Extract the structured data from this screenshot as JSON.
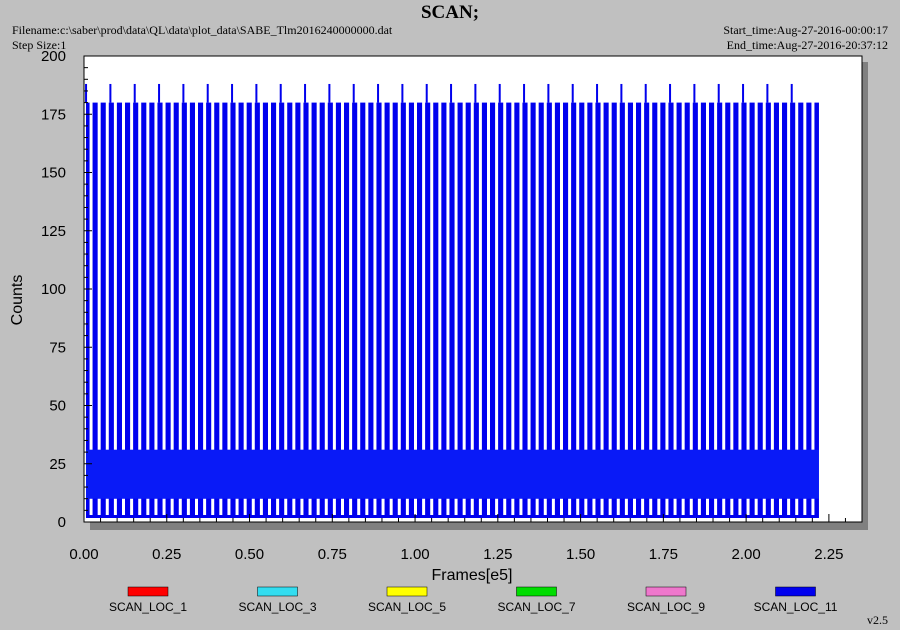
{
  "header": {
    "title": "SCAN;",
    "filename": "Filename:c:\\saber\\prod\\data\\QL\\data\\plot_data\\SABE_Tlm2016240000000.dat",
    "step_size": "Step Size:1",
    "start_time": "Start_time:Aug-27-2016-00:00:17",
    "end_time": "End_time:Aug-27-2016-20:37:12",
    "version": "v2.5"
  },
  "chart_data": {
    "type": "line",
    "xlabel": "Frames[e5]",
    "ylabel": "Counts",
    "xlim": [
      0,
      2.35
    ],
    "ylim": [
      0,
      200
    ],
    "x_ticks": [
      "0.00",
      "0.25",
      "0.50",
      "0.75",
      "1.00",
      "1.25",
      "1.50",
      "1.75",
      "2.00",
      "2.25"
    ],
    "y_ticks": [
      "0",
      "25",
      "50",
      "75",
      "100",
      "125",
      "150",
      "175",
      "200"
    ],
    "x_tick_values": [
      0,
      0.25,
      0.5,
      0.75,
      1.0,
      1.25,
      1.5,
      1.75,
      2.0,
      2.25
    ],
    "y_tick_values": [
      0,
      25,
      50,
      75,
      100,
      125,
      150,
      175,
      200
    ],
    "grid": false,
    "legend_position": "bottom",
    "data_extent_x": [
      0,
      2.22
    ],
    "scan_cycle_period": 0.0245,
    "series": [
      {
        "name": "SCAN_LOC_1",
        "color": "#ff0000",
        "values": []
      },
      {
        "name": "SCAN_LOC_3",
        "color": "#33ddf0",
        "values": []
      },
      {
        "name": "SCAN_LOC_5",
        "color": "#ffff00",
        "values": []
      },
      {
        "name": "SCAN_LOC_7",
        "color": "#00dd00",
        "values": []
      },
      {
        "name": "SCAN_LOC_9",
        "color": "#ee77cc",
        "values": []
      },
      {
        "name": "SCAN_LOC_11",
        "color": "#0000ee",
        "values": [
          {
            "level": "dense band",
            "min": 10,
            "max": 31
          },
          {
            "level": "main peak",
            "value": 180
          },
          {
            "level": "tall peak",
            "value": 188
          },
          {
            "level": "floor dip",
            "value": 3
          }
        ]
      }
    ]
  }
}
